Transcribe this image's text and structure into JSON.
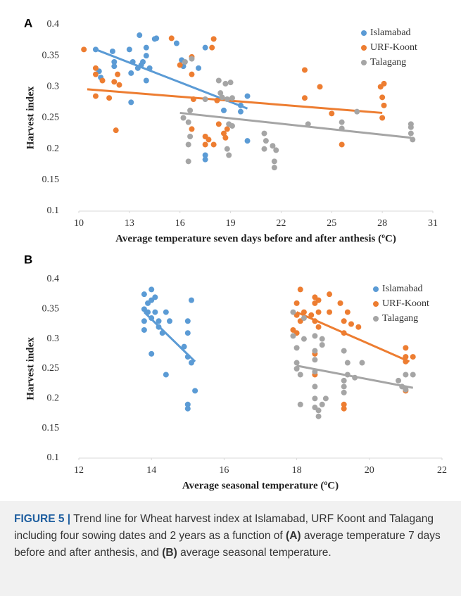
{
  "chart_data": [
    {
      "type": "scatter",
      "panel": "A",
      "y_label": "Harvest index",
      "x_label": "Average temperature seven days before and after anthesis (ºC)",
      "xlim": [
        10,
        31
      ],
      "xticks": [
        10,
        13,
        16,
        19,
        22,
        25,
        28,
        31
      ],
      "ylim": [
        0.1,
        0.4
      ],
      "yticks": [
        0.1,
        0.15,
        0.2,
        0.25,
        0.3,
        0.35,
        0.4
      ],
      "grid": false,
      "legend": "upper right",
      "series": [
        {
          "name": "Islamabad",
          "color": "#5b9bd5",
          "x": [
            11,
            11.2,
            11.3,
            12,
            12.1,
            12.1,
            13,
            13.1,
            13.1,
            13.2,
            13.5,
            13.6,
            13.7,
            13.8,
            14,
            14,
            14,
            14.2,
            14.5,
            14.6,
            15.8,
            16.1,
            16.2,
            17.1,
            17.5,
            17.5,
            17.5,
            18.6,
            19.6,
            19.6,
            20,
            20
          ],
          "values": [
            0.36,
            0.325,
            0.315,
            0.357,
            0.34,
            0.333,
            0.36,
            0.322,
            0.275,
            0.34,
            0.33,
            0.383,
            0.335,
            0.34,
            0.35,
            0.31,
            0.363,
            0.33,
            0.377,
            0.378,
            0.37,
            0.343,
            0.333,
            0.33,
            0.363,
            0.19,
            0.183,
            0.262,
            0.27,
            0.26,
            0.285,
            0.213
          ],
          "trend": {
            "x": [
              11,
              20
            ],
            "values": [
              0.36,
              0.265
            ]
          }
        },
        {
          "name": "URF-Koont",
          "color": "#ed7d31",
          "x": [
            10.3,
            11,
            11,
            11,
            11.4,
            11.8,
            12.2,
            12.1,
            12.3,
            12.4,
            15.5,
            16,
            16.7,
            16.7,
            16.8,
            16.7,
            17.5,
            17.5,
            17.7,
            17.9,
            18,
            18,
            18.2,
            18.3,
            18.6,
            18.7,
            18.8,
            23.4,
            23.4,
            24.3,
            25,
            25.6,
            27.9,
            28,
            28.1,
            28.1,
            28
          ],
          "values": [
            0.36,
            0.33,
            0.32,
            0.285,
            0.31,
            0.282,
            0.23,
            0.308,
            0.32,
            0.303,
            0.378,
            0.335,
            0.32,
            0.348,
            0.28,
            0.232,
            0.207,
            0.22,
            0.215,
            0.363,
            0.377,
            0.207,
            0.278,
            0.24,
            0.225,
            0.218,
            0.232,
            0.327,
            0.282,
            0.3,
            0.257,
            0.207,
            0.3,
            0.283,
            0.305,
            0.27,
            0.25
          ],
          "trend": {
            "x": [
              10.5,
              28
            ],
            "values": [
              0.296,
              0.258
            ]
          }
        },
        {
          "name": "Talagang",
          "color": "#a5a5a5",
          "x": [
            16.2,
            16.3,
            16.6,
            16.5,
            16.6,
            16.5,
            16.5,
            16.7,
            17.5,
            18.3,
            18.4,
            18.5,
            18.7,
            18.8,
            19,
            19.1,
            18.9,
            18.8,
            18.9,
            19.1,
            21,
            21,
            21.1,
            21.5,
            21.6,
            21.6,
            21.7,
            23.6,
            25.6,
            25.6,
            26.5,
            29.7,
            29.7,
            29.8,
            29.7
          ],
          "values": [
            0.25,
            0.34,
            0.262,
            0.243,
            0.22,
            0.207,
            0.18,
            0.345,
            0.28,
            0.31,
            0.29,
            0.283,
            0.305,
            0.28,
            0.307,
            0.282,
            0.24,
            0.2,
            0.19,
            0.237,
            0.225,
            0.2,
            0.213,
            0.205,
            0.18,
            0.17,
            0.198,
            0.24,
            0.243,
            0.233,
            0.26,
            0.24,
            0.225,
            0.215,
            0.235
          ],
          "trend": {
            "x": [
              16,
              29.7
            ],
            "values": [
              0.258,
              0.218
            ]
          }
        }
      ]
    },
    {
      "type": "scatter",
      "panel": "B",
      "y_label": "Harvest index",
      "x_label": "Average seasonal temperature (ºC)",
      "xlim": [
        12,
        22
      ],
      "xticks": [
        12,
        14,
        16,
        18,
        20,
        22
      ],
      "ylim": [
        0.1,
        0.4
      ],
      "yticks": [
        0.1,
        0.15,
        0.2,
        0.25,
        0.3,
        0.35,
        0.4
      ],
      "grid": false,
      "legend": "upper right",
      "series": [
        {
          "name": "Islamabad",
          "color": "#5b9bd5",
          "x": [
            13.8,
            13.8,
            13.8,
            13.8,
            13.9,
            13.9,
            14,
            14,
            14,
            14,
            14.1,
            14.1,
            14.2,
            14.2,
            14.3,
            14.4,
            14.4,
            14.5,
            14.9,
            15,
            15,
            15,
            15,
            15,
            15.1,
            15.1,
            15.2
          ],
          "values": [
            0.375,
            0.35,
            0.33,
            0.315,
            0.36,
            0.345,
            0.383,
            0.365,
            0.335,
            0.275,
            0.37,
            0.345,
            0.33,
            0.32,
            0.31,
            0.345,
            0.24,
            0.33,
            0.287,
            0.33,
            0.31,
            0.27,
            0.19,
            0.183,
            0.26,
            0.365,
            0.213
          ],
          "trend": {
            "x": [
              13.8,
              15.2
            ],
            "values": [
              0.345,
              0.262
            ]
          }
        },
        {
          "name": "URF-Koont",
          "color": "#ed7d31",
          "x": [
            17.9,
            18,
            18,
            18,
            18.1,
            18.1,
            18.2,
            18.4,
            18.5,
            18.5,
            18.5,
            18.5,
            18.5,
            18.6,
            18.6,
            18.6,
            18.9,
            18.9,
            19.2,
            19.3,
            19.3,
            19.3,
            19.3,
            19.4,
            19.5,
            19.7,
            21,
            21,
            21,
            21,
            21.2
          ],
          "values": [
            0.315,
            0.36,
            0.34,
            0.31,
            0.383,
            0.33,
            0.345,
            0.34,
            0.37,
            0.36,
            0.33,
            0.275,
            0.24,
            0.365,
            0.345,
            0.32,
            0.375,
            0.345,
            0.36,
            0.33,
            0.31,
            0.19,
            0.183,
            0.345,
            0.325,
            0.32,
            0.285,
            0.27,
            0.262,
            0.213,
            0.27
          ],
          "trend": {
            "x": [
              18,
              21.1
            ],
            "values": [
              0.345,
              0.262
            ]
          }
        },
        {
          "name": "Talagang",
          "color": "#a5a5a5",
          "x": [
            17.9,
            17.9,
            18,
            18,
            18,
            18.1,
            18.1,
            18.2,
            18.2,
            18.5,
            18.5,
            18.5,
            18.5,
            18.5,
            18.5,
            18.5,
            18.6,
            18.6,
            18.7,
            18.7,
            18.7,
            18.8,
            19.3,
            19.3,
            19.3,
            19.3,
            19.4,
            19.4,
            19.6,
            19.8,
            20.8,
            20.9,
            21,
            21,
            21.2
          ],
          "values": [
            0.345,
            0.305,
            0.285,
            0.26,
            0.25,
            0.24,
            0.19,
            0.335,
            0.3,
            0.305,
            0.28,
            0.265,
            0.245,
            0.22,
            0.2,
            0.185,
            0.17,
            0.18,
            0.3,
            0.29,
            0.19,
            0.2,
            0.28,
            0.23,
            0.22,
            0.21,
            0.26,
            0.24,
            0.235,
            0.26,
            0.23,
            0.22,
            0.24,
            0.215,
            0.24
          ],
          "trend": {
            "x": [
              18,
              21.2
            ],
            "values": [
              0.255,
              0.218
            ]
          }
        }
      ]
    }
  ],
  "caption": {
    "label": "FIGURE 5 |",
    "parts": [
      "Trend line for Wheat harvest index at Islamabad, URF Koont and Talagang including four sowing dates and 2 years as a function of ",
      "(A)",
      " average temperature 7 days before and after anthesis, and ",
      "(B)",
      " average seasonal temperature."
    ]
  }
}
